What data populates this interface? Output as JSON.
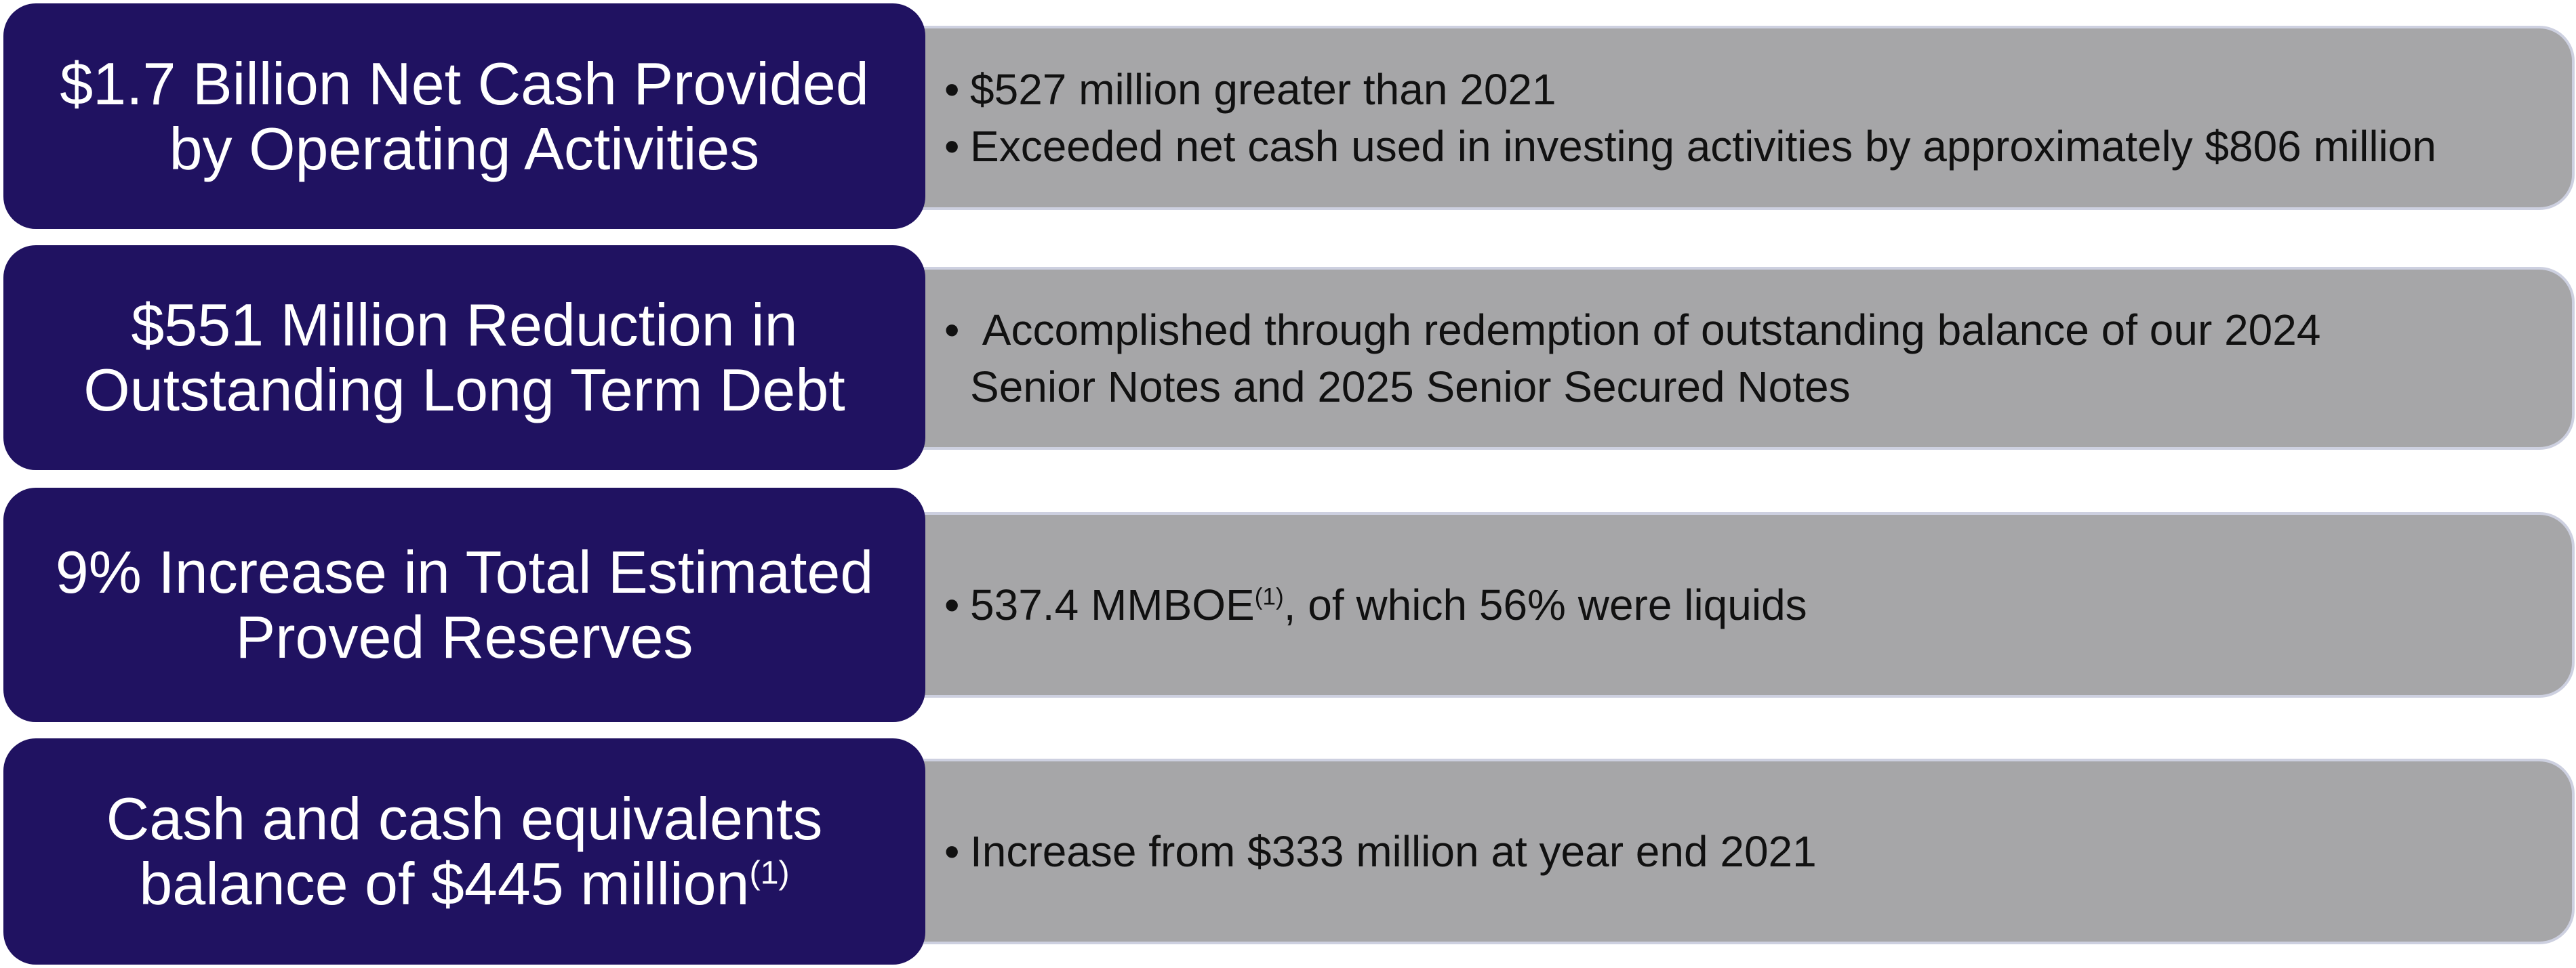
{
  "rows": [
    {
      "headline_lines": [
        "$1.7 Billion Net Cash Provided",
        "by Operating Activities"
      ],
      "bullets": [
        "$527 million greater than 2021",
        "Exceeded net cash used in investing activities by approximately $806 million"
      ]
    },
    {
      "headline_lines": [
        "$551 Million Reduction in",
        "Outstanding Long Term Debt"
      ],
      "bullets": [
        "Accomplished through redemption of outstanding balance of our 2024",
        "Senior Notes and 2025 Senior Secured Notes"
      ]
    },
    {
      "headline_lines": [
        "9% Increase in Total Estimated",
        "Proved Reserves"
      ],
      "bullet_main": "537.4 MMBOE",
      "bullet_sup": "(1)",
      "bullet_rest": ", of which 56% were liquids"
    },
    {
      "headline_line1": "Cash and cash equivalents",
      "headline_line2": "balance of $445 million",
      "headline_sup": "(1)",
      "bullets": [
        "Increase from $333 million at year end 2021"
      ]
    }
  ],
  "colors": {
    "headline_bg": "#201261",
    "detail_bg": "#a6a6a8",
    "detail_border": "#cdd0e0"
  }
}
